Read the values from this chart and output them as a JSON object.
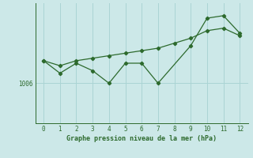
{
  "x": [
    0,
    1,
    2,
    3,
    4,
    5,
    6,
    7,
    8,
    9,
    10,
    11,
    12
  ],
  "y_jagged": [
    1010.5,
    1008.0,
    1010.0,
    1008.5,
    1006.0,
    1010.0,
    1010.0,
    1006.0,
    1013.5,
    1019.0,
    1019.5,
    1016.0
  ],
  "x_jagged": [
    0,
    1,
    2,
    3,
    4,
    5,
    6,
    7,
    9,
    10,
    11,
    12
  ],
  "y_smooth": [
    1010.5,
    1009.5,
    1010.5,
    1011.0,
    1011.5,
    1012.0,
    1012.5,
    1013.0,
    1014.0,
    1015.0,
    1016.5,
    1017.0,
    1015.5
  ],
  "ytick_label": "1006",
  "ytick_value": 1006,
  "xlabel": "Graphe pression niveau de la mer (hPa)",
  "line_color": "#2d6a2d",
  "bg_color": "#cce8e8",
  "grid_color": "#aad4d4",
  "ylim": [
    998,
    1022
  ],
  "xlim": [
    -0.5,
    12.5
  ]
}
